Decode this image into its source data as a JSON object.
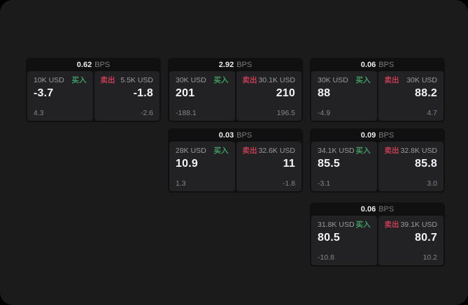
{
  "labels": {
    "bps_suffix": "BPS",
    "buy": "买入",
    "sell": "卖出"
  },
  "colors": {
    "page_background": "#1b1b1c",
    "card_background": "#101011",
    "panel_background": "#222224",
    "buy_green": "#3f9b63",
    "sell_red": "#c23d53",
    "muted_text": "#9a9a9a",
    "value_text": "#f4f4f4"
  },
  "cards": [
    {
      "bps": "0.62",
      "buy": {
        "amount": "10K USD",
        "value": "-3.7",
        "sub": "4.3"
      },
      "sell": {
        "amount": "5.5K USD",
        "value": "-1.8",
        "sub": "-2.6"
      }
    },
    {
      "bps": "2.92",
      "buy": {
        "amount": "30K USD",
        "value": "201",
        "sub": "-188.1"
      },
      "sell": {
        "amount": "30.1K USD",
        "value": "210",
        "sub": "196.5"
      }
    },
    {
      "bps": "0.06",
      "buy": {
        "amount": "30K USD",
        "value": "88",
        "sub": "-4.9"
      },
      "sell": {
        "amount": "30K USD",
        "value": "88.2",
        "sub": "4.7"
      }
    },
    {
      "bps": "0.03",
      "buy": {
        "amount": "28K USD",
        "value": "10.9",
        "sub": "1.3"
      },
      "sell": {
        "amount": "32.6K USD",
        "value": "11",
        "sub": "-1.8"
      }
    },
    {
      "bps": "0.09",
      "buy": {
        "amount": "34.1K USD",
        "value": "85.5",
        "sub": "-3.1"
      },
      "sell": {
        "amount": "32.8K USD",
        "value": "85.8",
        "sub": "3.0"
      }
    },
    {
      "bps": "0.06",
      "buy": {
        "amount": "31.8K USD",
        "value": "80.5",
        "sub": "-10.8"
      },
      "sell": {
        "amount": "39.1K USD",
        "value": "80.7",
        "sub": "10.2"
      }
    }
  ]
}
